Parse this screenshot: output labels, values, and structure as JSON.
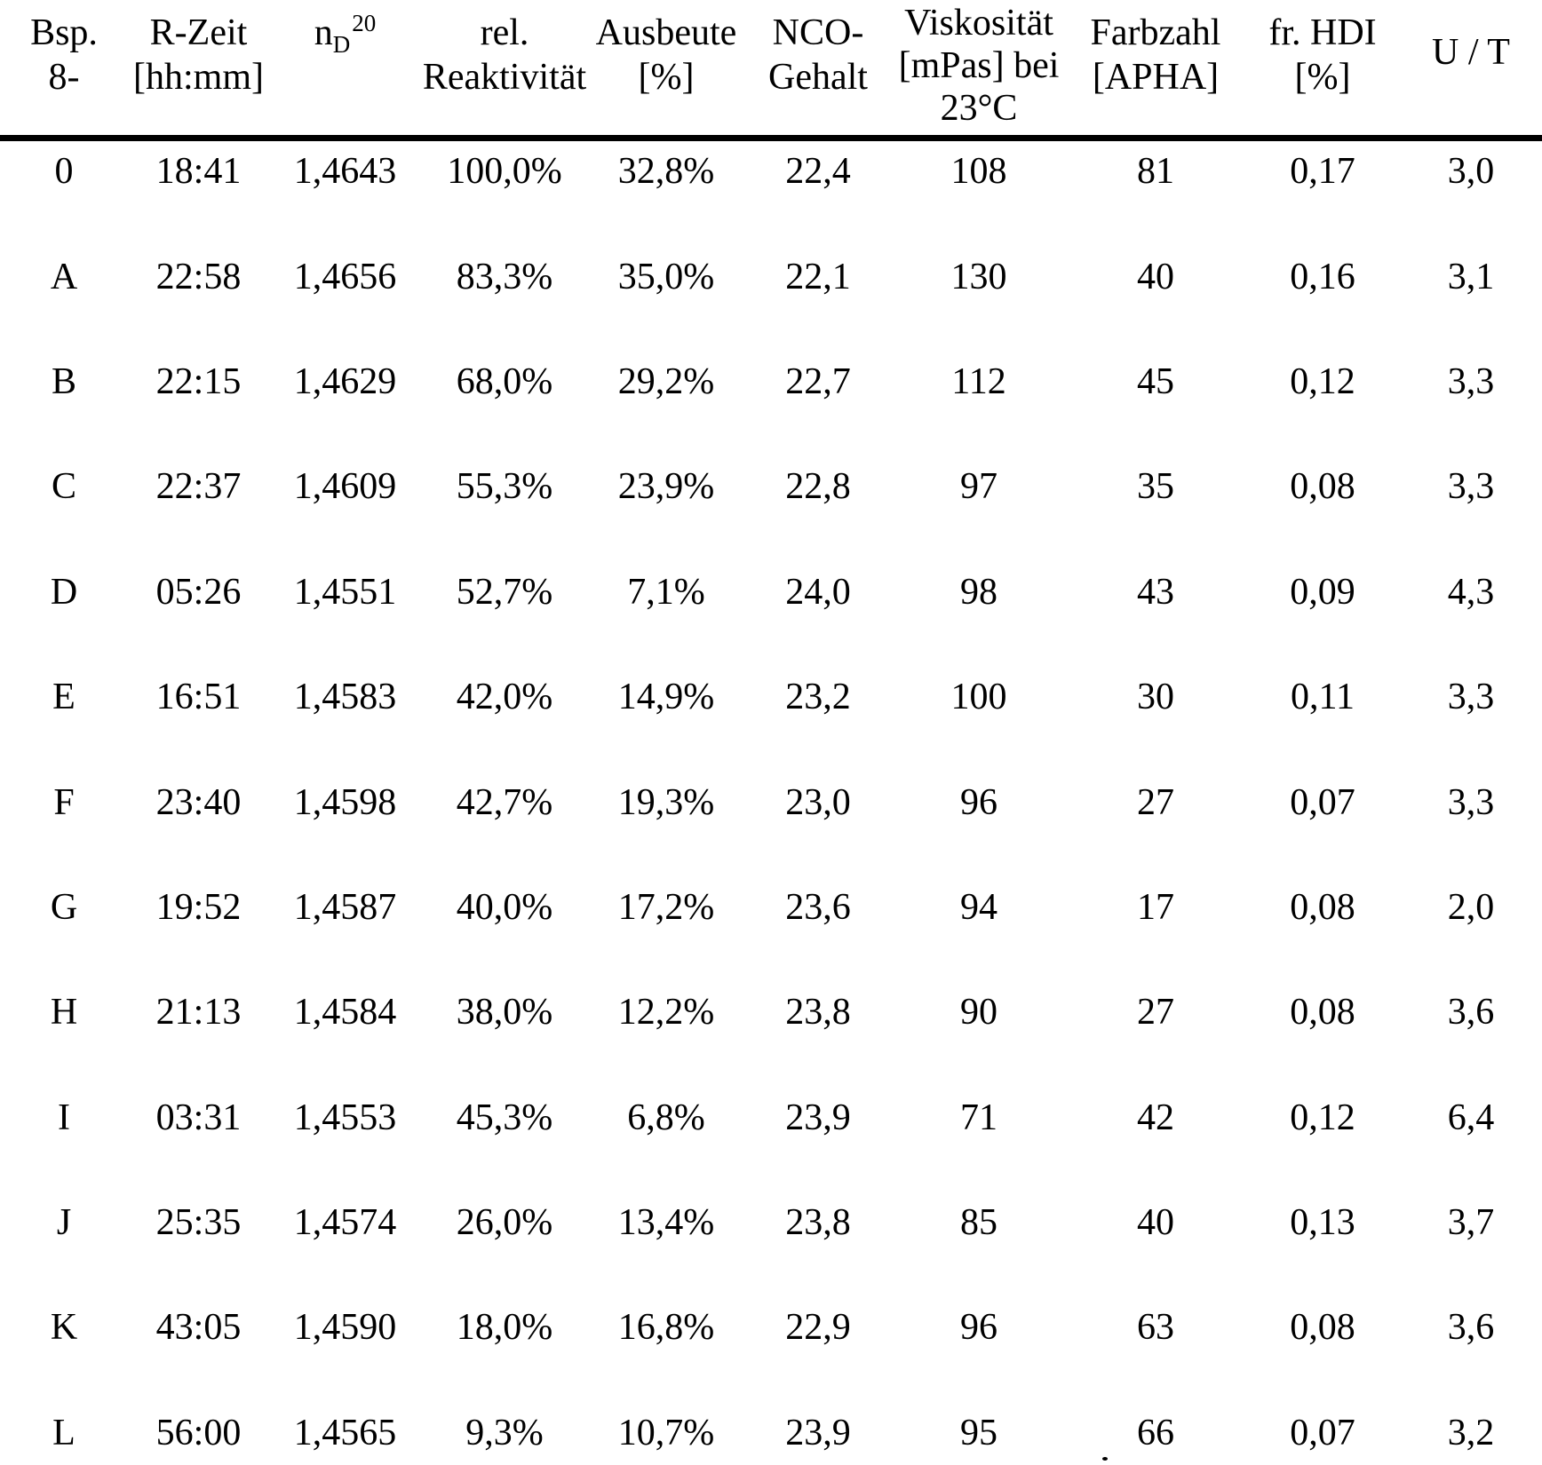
{
  "table": {
    "headers": [
      {
        "line1": "Bsp.",
        "line2": "8-"
      },
      {
        "line1": "R-Zeit",
        "line2": "[hh:mm]"
      },
      {
        "base": "n",
        "sub": "D",
        "sup": "20"
      },
      {
        "line1": "rel.",
        "line2": "Reaktivität"
      },
      {
        "line1": "Ausbeute",
        "line2": "[%]"
      },
      {
        "line1": "NCO-",
        "line2": "Gehalt"
      },
      {
        "line1": "Viskosität",
        "line2": "[mPas] bei",
        "line3": "23°C"
      },
      {
        "line1": "Farbzahl",
        "line2": "[APHA]"
      },
      {
        "line1": "fr. HDI",
        "line2": "[%]"
      },
      {
        "line1": "U / T"
      }
    ],
    "rows": [
      [
        "0",
        "18:41",
        "1,4643",
        "100,0%",
        "32,8%",
        "22,4",
        "108",
        "81",
        "0,17",
        "3,0"
      ],
      [
        "A",
        "22:58",
        "1,4656",
        "83,3%",
        "35,0%",
        "22,1",
        "130",
        "40",
        "0,16",
        "3,1"
      ],
      [
        "B",
        "22:15",
        "1,4629",
        "68,0%",
        "29,2%",
        "22,7",
        "112",
        "45",
        "0,12",
        "3,3"
      ],
      [
        "C",
        "22:37",
        "1,4609",
        "55,3%",
        "23,9%",
        "22,8",
        "97",
        "35",
        "0,08",
        "3,3"
      ],
      [
        "D",
        "05:26",
        "1,4551",
        "52,7%",
        "7,1%",
        "24,0",
        "98",
        "43",
        "0,09",
        "4,3"
      ],
      [
        "E",
        "16:51",
        "1,4583",
        "42,0%",
        "14,9%",
        "23,2",
        "100",
        "30",
        "0,11",
        "3,3"
      ],
      [
        "F",
        "23:40",
        "1,4598",
        "42,7%",
        "19,3%",
        "23,0",
        "96",
        "27",
        "0,07",
        "3,3"
      ],
      [
        "G",
        "19:52",
        "1,4587",
        "40,0%",
        "17,2%",
        "23,6",
        "94",
        "17",
        "0,08",
        "2,0"
      ],
      [
        "H",
        "21:13",
        "1,4584",
        "38,0%",
        "12,2%",
        "23,8",
        "90",
        "27",
        "0,08",
        "3,6"
      ],
      [
        "I",
        "03:31",
        "1,4553",
        "45,3%",
        "6,8%",
        "23,9",
        "71",
        "42",
        "0,12",
        "6,4"
      ],
      [
        "J",
        "25:35",
        "1,4574",
        "26,0%",
        "13,4%",
        "23,8",
        "85",
        "40",
        "0,13",
        "3,7"
      ],
      [
        "K",
        "43:05",
        "1,4590",
        "18,0%",
        "16,8%",
        "22,9",
        "96",
        "63",
        "0,08",
        "3,6"
      ],
      [
        "L",
        "56:00",
        "1,4565",
        "9,3%",
        "10,7%",
        "23,9",
        "95",
        "66",
        "0,07",
        "3,2"
      ]
    ]
  }
}
